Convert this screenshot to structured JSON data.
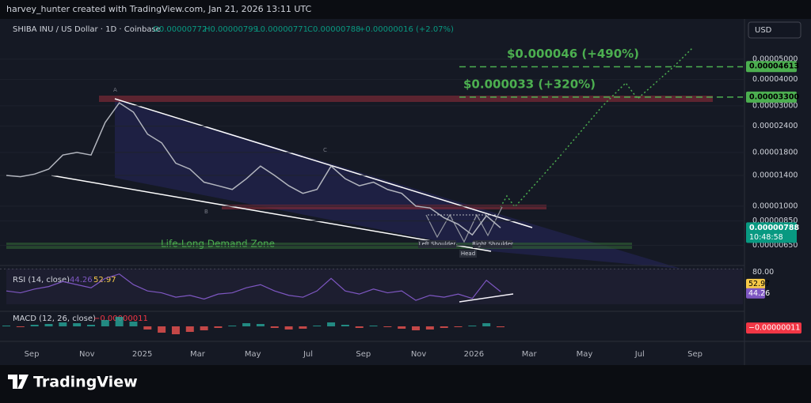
{
  "header": {
    "credit": "harvey_hunter created with TradingView.com, Jan 21, 2026 13:11 UTC"
  },
  "legend": {
    "symbol": "SHIBA INU / US Dollar · 1D · Coinbase",
    "open": "O0.00000772",
    "high": "H0.00000799",
    "low": "L0.00000771",
    "close": "C0.00000788",
    "change": "+0.00000016 (+2.07%)"
  },
  "currency": "USD",
  "chart_data": {
    "type": "line",
    "log_scale": true,
    "color": "#b2b5be",
    "ylim": [
      5.04e-06,
      7.7e-05
    ],
    "yticks": [
      {
        "value": 5e-05,
        "label": "0.00005000"
      },
      {
        "value": 4e-05,
        "label": "0.00004000"
      },
      {
        "value": 3e-05,
        "label": "0.00003000"
      },
      {
        "value": 2.4e-05,
        "label": "0.00002400"
      },
      {
        "value": 1.8e-05,
        "label": "0.00001800"
      },
      {
        "value": 1.4e-05,
        "label": "0.00001400"
      },
      {
        "value": 1e-05,
        "label": "0.00001000"
      },
      {
        "value": 8.5e-06,
        "label": "0.00000850"
      },
      {
        "value": 6.5e-06,
        "label": "0.00000650"
      }
    ],
    "values": [
      1.4e-05,
      1.38e-05,
      1.42e-05,
      1.5e-05,
      1.75e-05,
      1.8e-05,
      1.75e-05,
      2.5e-05,
      3.1e-05,
      2.8e-05,
      2.2e-05,
      2e-05,
      1.6e-05,
      1.5e-05,
      1.3e-05,
      1.25e-05,
      1.2e-05,
      1.35e-05,
      1.55e-05,
      1.4e-05,
      1.25e-05,
      1.15e-05,
      1.2e-05,
      1.55e-05,
      1.35e-05,
      1.25e-05,
      1.3e-05,
      1.2e-05,
      1.15e-05,
      1e-05,
      9.8e-06,
      8.8e-06,
      8.2e-06,
      7.3e-06,
      9e-06,
      7.88e-06
    ],
    "price_labels": [
      {
        "value": 4.613e-05,
        "label": "0.00004613",
        "color": "#4caf50"
      },
      {
        "value": 3.3e-05,
        "label": "0.00003300",
        "color": "#4caf50"
      },
      {
        "value": 7.88e-06,
        "label": "0.00000788",
        "color": "#089981"
      }
    ],
    "countdown": "10:48:58",
    "targets": [
      {
        "value": 4.6e-05,
        "label": "$0.000046 (+490%)"
      },
      {
        "value": 3.3e-05,
        "label": "$0.000033 (+320%)"
      }
    ],
    "annotations": {
      "zone": "Life-Long Demand Zone",
      "left_shoulder": "Left Shoulder",
      "head": "Head",
      "right_shoulder": "Right Shoulder",
      "a": "A",
      "b": "B",
      "c": "C"
    },
    "x_labels": [
      "Sep",
      "Nov",
      "2025",
      "Mar",
      "May",
      "Jul",
      "Sep",
      "Nov",
      "2026",
      "Mar",
      "May",
      "Jul",
      "Sep"
    ]
  },
  "rsi": {
    "title": "RSI (14, close)",
    "value": 44.26,
    "ma": 52.97,
    "color": "#7e57c2",
    "ylim": [
      15,
      83
    ],
    "yticks": [
      {
        "value": 80,
        "label": "80.00"
      }
    ],
    "values": [
      45,
      42,
      48,
      52,
      60,
      55,
      50,
      65,
      72,
      55,
      45,
      42,
      35,
      38,
      32,
      40,
      42,
      50,
      55,
      45,
      38,
      35,
      45,
      65,
      45,
      40,
      48,
      42,
      45,
      30,
      38,
      35,
      40,
      33,
      62,
      44
    ]
  },
  "macd": {
    "title": "MACD (12, 26, close)",
    "value": {
      "value": -1.1e-07,
      "label": "−0.00000011"
    },
    "ylim": [
      -1.5e-06,
      1.5e-06
    ],
    "histogram": [
      1e-07,
      -1e-07,
      2e-07,
      3e-07,
      5e-07,
      4e-07,
      2e-07,
      8e-07,
      1.2e-06,
      6e-07,
      -4e-07,
      -8e-07,
      -1e-06,
      -7e-07,
      -5e-07,
      -2e-07,
      1e-07,
      4e-07,
      3e-07,
      -2e-07,
      -4e-07,
      -3e-07,
      1e-07,
      5e-07,
      2e-07,
      -2e-07,
      1e-07,
      -1e-07,
      -3e-07,
      -5e-07,
      -4e-07,
      -2e-07,
      -1e-07,
      1e-07,
      4e-07,
      -1.1e-07
    ]
  },
  "footer": {
    "brand": "TradingView"
  }
}
